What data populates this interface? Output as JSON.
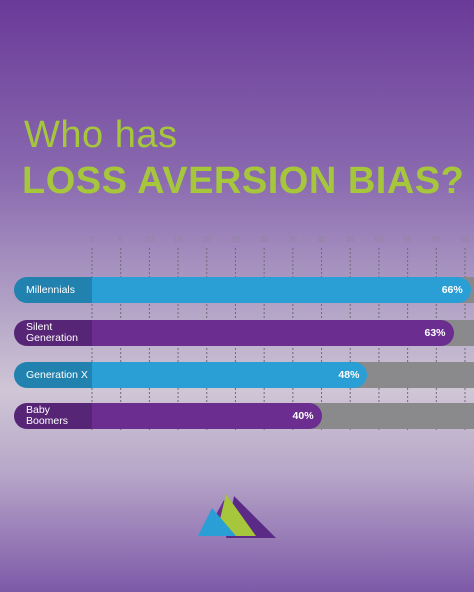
{
  "chart_data": {
    "type": "bar",
    "title": "Who has",
    "subtitle": "LOSS AVERSION BIAS?",
    "categories": [
      "Millennials",
      "Silent Generation",
      "Generation X",
      "Baby Boomers"
    ],
    "values": [
      66,
      63,
      48,
      40
    ],
    "value_labels": [
      "66%",
      "63%",
      "48%",
      "40%"
    ],
    "colors": [
      "#2a9fd6",
      "#6b2e90",
      "#2a9fd6",
      "#6b2e90"
    ],
    "xlim": [
      0,
      65
    ],
    "xticks": [
      0,
      5,
      10,
      15,
      20,
      25,
      30,
      35,
      40,
      45,
      50,
      55,
      60,
      65
    ],
    "grid": true
  }
}
